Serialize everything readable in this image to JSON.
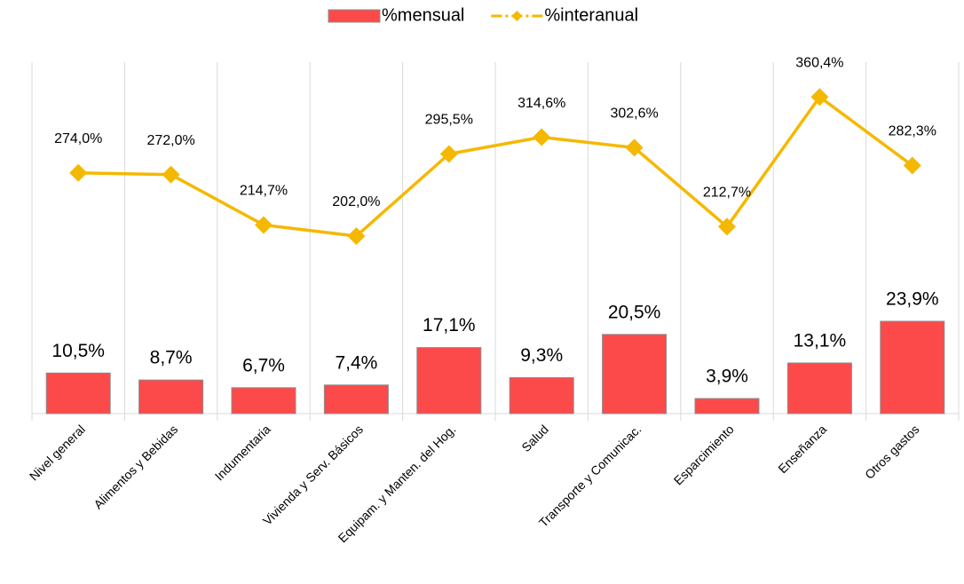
{
  "chart_data": {
    "type": "bar_line",
    "categories": [
      "Nivel general",
      "Alimentos y Bebidas",
      "Indumentaria",
      "Vivienda y Serv. Básicos",
      "Equipam. y Manten. del Hog.",
      "Salud",
      "Transporte y Comunicac.",
      "Esparcimiento",
      "Enseñanza",
      "Otros gastos"
    ],
    "series": [
      {
        "name": "%mensual",
        "type": "bar",
        "color": "#fc4a4a",
        "values": [
          10.5,
          8.7,
          6.7,
          7.4,
          17.1,
          9.3,
          20.5,
          3.9,
          13.1,
          23.9
        ],
        "value_labels": [
          "10,5%",
          "8,7%",
          "6,7%",
          "7,4%",
          "17,1%",
          "9,3%",
          "20,5%",
          "3,9%",
          "13,1%",
          "23,9%"
        ]
      },
      {
        "name": "%interanual",
        "type": "line",
        "axis": "y2",
        "color": "#f5b800",
        "values": [
          274.0,
          272.0,
          214.7,
          202.0,
          295.5,
          314.6,
          302.6,
          212.7,
          360.4,
          282.3
        ],
        "value_labels": [
          "274,0%",
          "272,0%",
          "214,7%",
          "202,0%",
          "295,5%",
          "314,6%",
          "302,6%",
          "212,7%",
          "360,4%",
          "282,3%"
        ]
      }
    ],
    "ylim": [
      0,
      91
    ],
    "y2lim": [
      0,
      400
    ],
    "legend": "top"
  }
}
